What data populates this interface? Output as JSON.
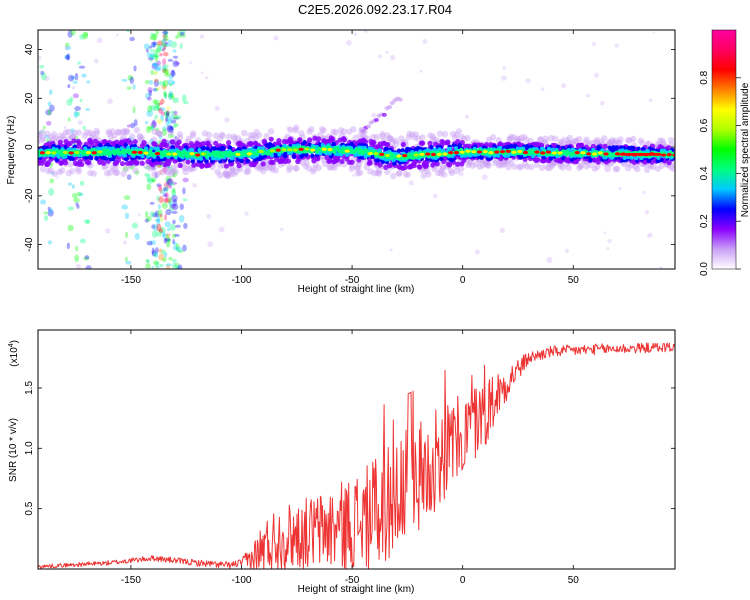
{
  "title": "C2E5.2026.092.23.17.R04",
  "chart_data": [
    {
      "type": "heatmap",
      "name": "spectrogram",
      "xlabel": "Height of straight line (km)",
      "ylabel": "Frequency (Hz)",
      "xlim": [
        -192,
        96
      ],
      "ylim": [
        -50,
        48
      ],
      "xticks": [
        -150,
        -100,
        -50,
        0,
        50
      ],
      "yticks": [
        40,
        20,
        0,
        -20,
        -40
      ],
      "ridge": {
        "description": "main spectral ridge near 0 Hz",
        "x": [
          -190,
          -150,
          -120,
          -100,
          -80,
          -60,
          -45,
          -30,
          -15,
          0,
          20,
          50,
          80,
          95
        ],
        "freq": [
          -2.5,
          -2,
          -3,
          -3,
          -1,
          -1,
          -2,
          -4,
          -3,
          -2,
          -2,
          -2.5,
          -3,
          -3
        ]
      },
      "colorbar": {
        "label": "Normalized spectral amplitude",
        "range": [
          0,
          1
        ],
        "ticks": [
          "0.0",
          "0.2",
          "0.4",
          "0.6",
          "0.8"
        ],
        "colors": [
          "#ffffff",
          "#c9a0f5",
          "#8a00ff",
          "#0000ff",
          "#00c8ff",
          "#00ff80",
          "#00ff00",
          "#b0ff00",
          "#ffff00",
          "#ff8000",
          "#ff0000",
          "#ff0060",
          "#ff00a0"
        ]
      }
    },
    {
      "type": "line",
      "name": "snr",
      "xlabel": "Height of straight line (km)",
      "ylabel": "SNR (10 * v/v)",
      "yscale_label": "(x10",
      "yscale_exp": "4",
      "yscale_close": ")",
      "xlim": [
        -192,
        96
      ],
      "ylim": [
        0,
        1.98
      ],
      "xticks": [
        -150,
        -100,
        -50,
        0,
        50
      ],
      "yticks": [
        0.5,
        1.0,
        1.5
      ],
      "ytick_labels": [
        "0.5",
        "1.0",
        "1.5"
      ],
      "color": "#ee3333",
      "trend": {
        "x": [
          -192,
          -160,
          -140,
          -120,
          -105,
          -95,
          -85,
          -70,
          -55,
          -40,
          -30,
          -20,
          -10,
          0,
          10,
          20,
          30,
          40,
          60,
          80,
          96
        ],
        "y": [
          0.02,
          0.05,
          0.09,
          0.05,
          0.03,
          0.08,
          0.25,
          0.3,
          0.35,
          0.45,
          0.6,
          0.75,
          0.95,
          1.1,
          1.3,
          1.55,
          1.75,
          1.8,
          1.82,
          1.83,
          1.84
        ]
      },
      "noise_amplitude": {
        "x": [
          -192,
          -100,
          -90,
          -70,
          -50,
          -30,
          -15,
          0,
          10,
          20,
          30,
          96
        ],
        "amp": [
          0.015,
          0.03,
          0.25,
          0.3,
          0.4,
          0.5,
          0.45,
          0.35,
          0.3,
          0.15,
          0.05,
          0.04
        ]
      }
    }
  ]
}
